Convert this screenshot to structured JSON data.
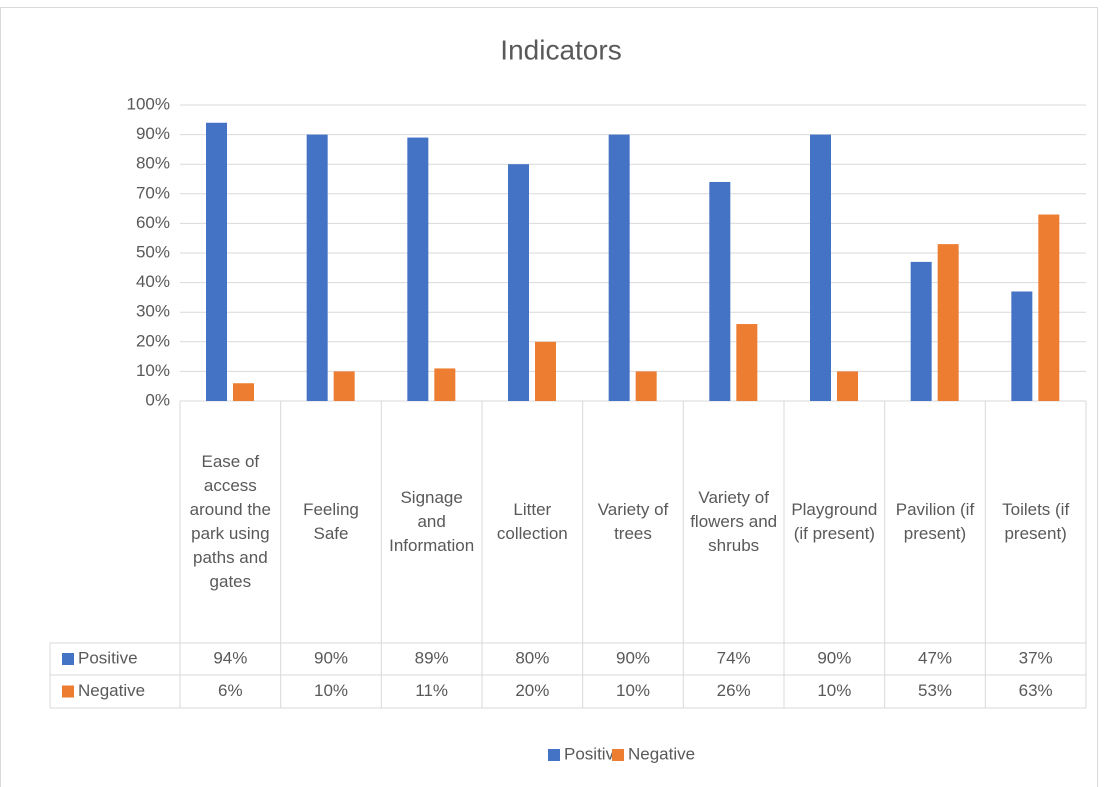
{
  "chart_data": {
    "type": "bar",
    "title": "Indicators",
    "categories": [
      "Ease of access around the park using paths and gates",
      "Feeling Safe",
      "Signage and Information",
      "Litter collection",
      "Variety of trees",
      "Variety of flowers and shrubs",
      "Playground (if present)",
      "Pavilion (if present)",
      "Toilets (if present)"
    ],
    "series": [
      {
        "name": "Positive",
        "color": "#4472c4",
        "values": [
          94,
          90,
          89,
          80,
          90,
          74,
          90,
          47,
          37
        ],
        "value_labels": [
          "94%",
          "90%",
          "89%",
          "80%",
          "90%",
          "74%",
          "90%",
          "47%",
          "37%"
        ]
      },
      {
        "name": "Negative",
        "color": "#ed7d31",
        "values": [
          6,
          10,
          11,
          20,
          10,
          26,
          10,
          53,
          63
        ],
        "value_labels": [
          "6%",
          "10%",
          "11%",
          "20%",
          "10%",
          "26%",
          "10%",
          "53%",
          "63%"
        ]
      }
    ],
    "ylim": [
      0,
      100
    ],
    "yticks": [
      {
        "value": 0,
        "label": "0%"
      },
      {
        "value": 10,
        "label": "10%"
      },
      {
        "value": 20,
        "label": "20%"
      },
      {
        "value": 30,
        "label": "30%"
      },
      {
        "value": 40,
        "label": "40%"
      },
      {
        "value": 50,
        "label": "50%"
      },
      {
        "value": 60,
        "label": "60%"
      },
      {
        "value": 70,
        "label": "70%"
      },
      {
        "value": 80,
        "label": "80%"
      },
      {
        "value": 90,
        "label": "90%"
      },
      {
        "value": 100,
        "label": "100%"
      }
    ],
    "grid": true,
    "legend": "bottom"
  }
}
